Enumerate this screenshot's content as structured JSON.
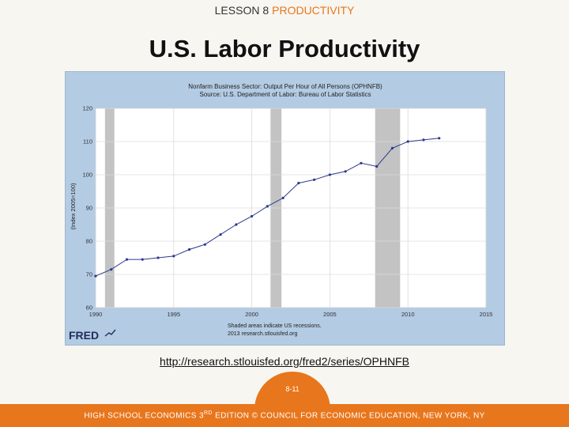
{
  "header": {
    "lesson": "LESSON 8",
    "topic": "PRODUCTIVITY"
  },
  "slide": {
    "title": "U.S. Labor Productivity"
  },
  "link": {
    "text": "http://research.stlouisfed.org/fred2/series/OPHNFB"
  },
  "page": {
    "number": "8-11"
  },
  "footer": {
    "pre": "HIGH SCHOOL ECONOMICS 3",
    "sup": "RD",
    "post": " EDITION © COUNCIL FOR ECONOMIC EDUCATION, NEW YORK, NY"
  },
  "colors": {
    "accent": "#e8761c",
    "chart_bg": "#b3cbe3",
    "series": "#2b3a8c",
    "recession": "#c3c3c3"
  },
  "chart_data": {
    "type": "line",
    "title": "Nonfarm Business Sector: Output Per Hour of All Persons (OPHNFB)",
    "subtitle": "Source: U.S. Department of Labor: Bureau of Labor Statistics",
    "ylabel": "(Index 2005=100)",
    "xlabel": "",
    "xlim": [
      1990,
      2015
    ],
    "ylim": [
      60,
      120
    ],
    "xticks": [
      "1990",
      "1995",
      "2000",
      "2005",
      "2010",
      "2015"
    ],
    "yticks": [
      "60",
      "70",
      "80",
      "90",
      "100",
      "110",
      "120"
    ],
    "grid": true,
    "series": [
      {
        "x": [
          1990,
          1991,
          1992,
          1993,
          1994,
          1995,
          1996,
          1997,
          1998,
          1999,
          2000,
          2001,
          2002,
          2003,
          2004,
          2005,
          2006,
          2007,
          2008,
          2009,
          2010,
          2011,
          2012
        ],
        "y": [
          69.5,
          71.5,
          74.5,
          74.5,
          75,
          75.5,
          77.5,
          79,
          82,
          85,
          87.5,
          90.5,
          93,
          97.5,
          98.5,
          100,
          101,
          103.5,
          102.5,
          108,
          110,
          110.5,
          111
        ]
      }
    ],
    "recessions": [
      [
        1990.6,
        1991.2
      ],
      [
        2001.2,
        2001.9
      ],
      [
        2007.9,
        2009.5
      ]
    ],
    "notes": [
      "Shaded areas indicate US recessions.",
      "2013 research.stlouisfed.org"
    ],
    "logo": "FRED"
  }
}
